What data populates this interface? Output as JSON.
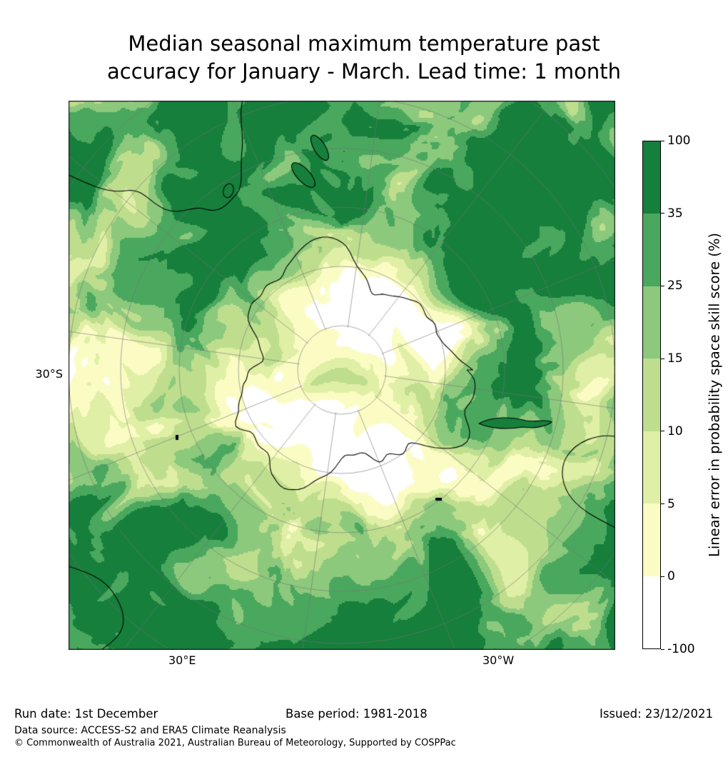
{
  "title": {
    "line1": "Median seasonal maximum temperature past",
    "line2": "accuracy for January - March. Lead time: 1 month"
  },
  "chart_data": {
    "type": "heatmap",
    "title": "Median seasonal maximum temperature past accuracy for January - March. Lead time: 1 month",
    "projection": "south-polar stereographic map centered on Antarctica",
    "colorbar_label": "Linear error in probability space skill score (%)",
    "levels": [
      -100,
      0,
      5,
      10,
      15,
      25,
      35,
      100
    ],
    "colors": [
      "#ffffff",
      "#fbfcc4",
      "#e0efa6",
      "#bede8e",
      "#8cc97d",
      "#4aa85e",
      "#167f3c"
    ],
    "legend_position": "right",
    "grid": true,
    "map_labels": {
      "latitude": "30°S",
      "longitude_left": "30°E",
      "longitude_right": "30°W"
    }
  },
  "footer": {
    "run_date": "Run date: 1st December",
    "base_period": "Base period: 1981-2018",
    "issued": "Issued: 23/12/2021",
    "data_source": "Data source: ACCESS-S2 and ERA5 Climate Reanalysis",
    "copyright": "© Commonwealth of Australia 2021, Australian Bureau of Meteorology, Supported by COSPPac"
  }
}
